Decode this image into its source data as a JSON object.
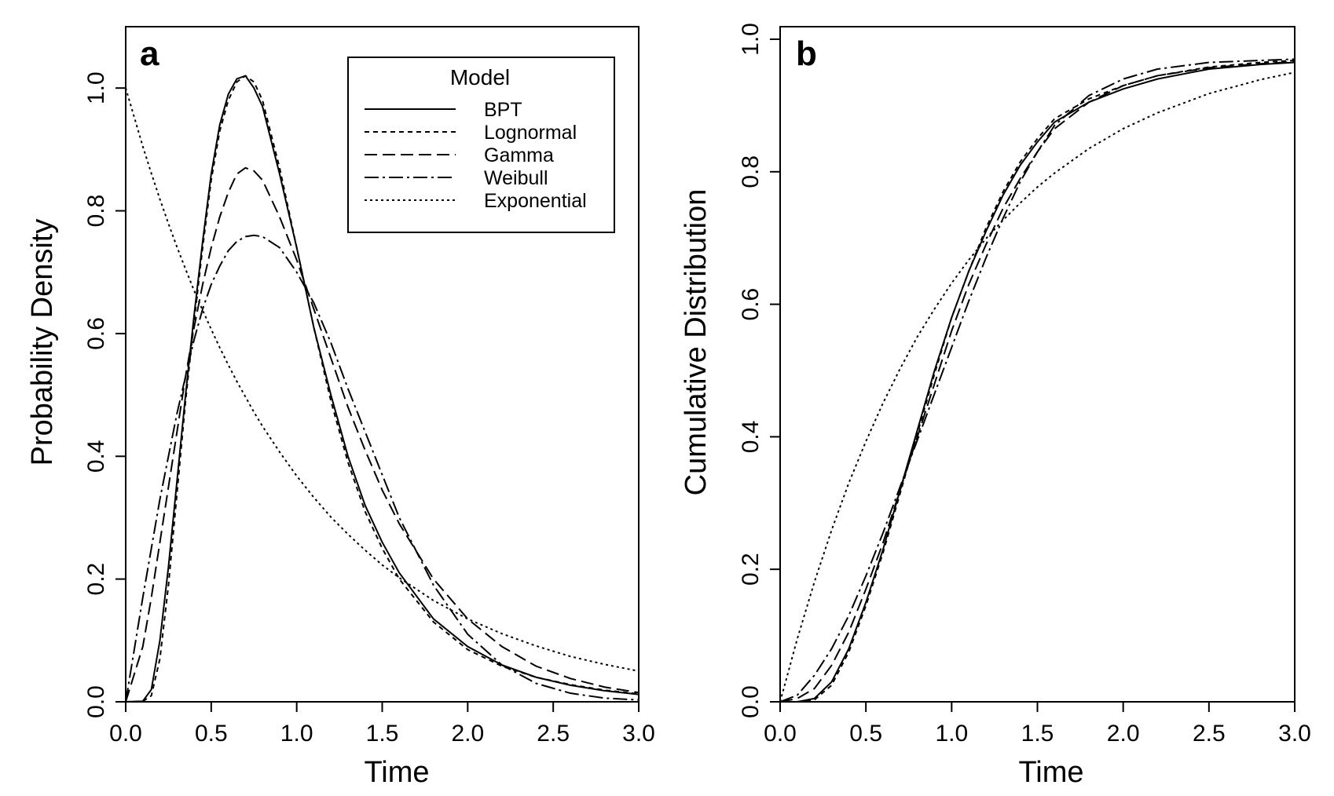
{
  "chart_data": [
    {
      "type": "line",
      "panel": "a",
      "xlabel": "Time",
      "ylabel": "Probability Density",
      "xlim": [
        0,
        3
      ],
      "ylim": [
        0,
        1.1
      ],
      "xticks": [
        "0.0",
        "0.5",
        "1.0",
        "1.5",
        "2.0",
        "2.5",
        "3.0"
      ],
      "yticks": [
        "0.0",
        "0.2",
        "0.4",
        "0.6",
        "0.8",
        "1.0"
      ],
      "grid": false,
      "legend": {
        "title": "Model",
        "position": "top-right",
        "entries": [
          "BPT",
          "Lognormal",
          "Gamma",
          "Weibull",
          "Exponential"
        ]
      },
      "x": [
        0,
        0.1,
        0.15,
        0.2,
        0.25,
        0.3,
        0.35,
        0.4,
        0.45,
        0.5,
        0.55,
        0.6,
        0.65,
        0.7,
        0.75,
        0.8,
        0.9,
        1.0,
        1.1,
        1.2,
        1.3,
        1.4,
        1.5,
        1.6,
        1.8,
        2.0,
        2.2,
        2.4,
        2.6,
        2.8,
        3.0
      ],
      "series": [
        {
          "name": "BPT",
          "dash": "solid",
          "values": [
            0,
            0.001,
            0.02,
            0.1,
            0.22,
            0.36,
            0.5,
            0.63,
            0.75,
            0.86,
            0.94,
            0.99,
            1.015,
            1.02,
            1.0,
            0.97,
            0.86,
            0.74,
            0.61,
            0.5,
            0.4,
            0.32,
            0.26,
            0.21,
            0.135,
            0.09,
            0.06,
            0.04,
            0.027,
            0.018,
            0.012
          ]
        },
        {
          "name": "Lognormal",
          "dash": "6,5",
          "values": [
            0,
            0.0005,
            0.01,
            0.07,
            0.19,
            0.34,
            0.49,
            0.62,
            0.74,
            0.85,
            0.93,
            0.98,
            1.01,
            1.02,
            1.01,
            0.98,
            0.87,
            0.74,
            0.61,
            0.49,
            0.39,
            0.31,
            0.25,
            0.2,
            0.13,
            0.085,
            0.058,
            0.04,
            0.028,
            0.019,
            0.013
          ]
        },
        {
          "name": "Gamma",
          "dash": "16,7",
          "values": [
            0,
            0.09,
            0.17,
            0.26,
            0.35,
            0.44,
            0.53,
            0.61,
            0.68,
            0.74,
            0.79,
            0.83,
            0.86,
            0.87,
            0.865,
            0.85,
            0.79,
            0.72,
            0.64,
            0.56,
            0.48,
            0.41,
            0.345,
            0.29,
            0.2,
            0.135,
            0.09,
            0.058,
            0.038,
            0.024,
            0.015
          ]
        },
        {
          "name": "Weibull",
          "dash": "18,5,3,5",
          "values": [
            0,
            0.17,
            0.25,
            0.33,
            0.4,
            0.47,
            0.53,
            0.59,
            0.64,
            0.68,
            0.71,
            0.735,
            0.75,
            0.758,
            0.76,
            0.758,
            0.74,
            0.7,
            0.65,
            0.585,
            0.51,
            0.44,
            0.37,
            0.3,
            0.19,
            0.11,
            0.06,
            0.03,
            0.014,
            0.006,
            0.003
          ]
        },
        {
          "name": "Exponential",
          "dash": "3,4",
          "values": [
            1.0,
            0.905,
            0.861,
            0.819,
            0.779,
            0.741,
            0.705,
            0.67,
            0.638,
            0.607,
            0.577,
            0.549,
            0.522,
            0.497,
            0.472,
            0.449,
            0.407,
            0.368,
            0.333,
            0.301,
            0.273,
            0.247,
            0.223,
            0.202,
            0.165,
            0.135,
            0.111,
            0.091,
            0.074,
            0.061,
            0.05
          ]
        }
      ]
    },
    {
      "type": "line",
      "panel": "b",
      "xlabel": "Time",
      "ylabel": "Cumulative Distribution",
      "xlim": [
        0,
        3
      ],
      "ylim": [
        0,
        1.0
      ],
      "xticks": [
        "0.0",
        "0.5",
        "1.0",
        "1.5",
        "2.0",
        "2.5",
        "3.0"
      ],
      "yticks": [
        "0.0",
        "0.2",
        "0.4",
        "0.6",
        "0.8",
        "1.0"
      ],
      "grid": false,
      "x": [
        0,
        0.1,
        0.2,
        0.3,
        0.4,
        0.5,
        0.6,
        0.7,
        0.8,
        0.9,
        1.0,
        1.1,
        1.2,
        1.3,
        1.4,
        1.5,
        1.6,
        1.8,
        2.0,
        2.2,
        2.5,
        2.8,
        3.0
      ],
      "series": [
        {
          "name": "BPT",
          "dash": "solid",
          "values": [
            0,
            0.0,
            0.005,
            0.03,
            0.08,
            0.15,
            0.23,
            0.32,
            0.41,
            0.5,
            0.58,
            0.65,
            0.71,
            0.765,
            0.81,
            0.845,
            0.875,
            0.905,
            0.925,
            0.94,
            0.955,
            0.962,
            0.965
          ]
        },
        {
          "name": "Lognormal",
          "dash": "6,5",
          "values": [
            0,
            0.0,
            0.003,
            0.025,
            0.075,
            0.145,
            0.225,
            0.315,
            0.405,
            0.495,
            0.58,
            0.65,
            0.715,
            0.77,
            0.815,
            0.85,
            0.88,
            0.91,
            0.93,
            0.945,
            0.958,
            0.965,
            0.968
          ]
        },
        {
          "name": "Gamma",
          "dash": "16,7",
          "values": [
            0,
            0.005,
            0.02,
            0.055,
            0.105,
            0.17,
            0.24,
            0.32,
            0.4,
            0.48,
            0.56,
            0.63,
            0.69,
            0.745,
            0.79,
            0.83,
            0.865,
            0.905,
            0.93,
            0.945,
            0.957,
            0.963,
            0.966
          ]
        },
        {
          "name": "Weibull",
          "dash": "18,5,3,5",
          "values": [
            0,
            0.01,
            0.04,
            0.08,
            0.13,
            0.19,
            0.255,
            0.325,
            0.395,
            0.465,
            0.535,
            0.605,
            0.67,
            0.73,
            0.785,
            0.83,
            0.87,
            0.915,
            0.94,
            0.955,
            0.965,
            0.968,
            0.97
          ]
        },
        {
          "name": "Exponential",
          "dash": "3,4",
          "values": [
            0,
            0.095,
            0.181,
            0.259,
            0.33,
            0.393,
            0.451,
            0.503,
            0.551,
            0.593,
            0.632,
            0.667,
            0.699,
            0.727,
            0.753,
            0.777,
            0.798,
            0.835,
            0.865,
            0.889,
            0.918,
            0.939,
            0.95
          ]
        }
      ]
    }
  ]
}
